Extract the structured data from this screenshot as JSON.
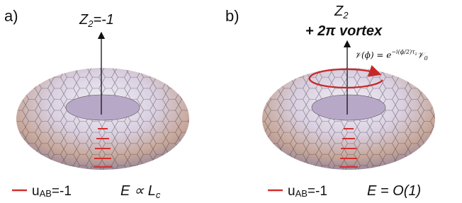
{
  "panels": [
    {
      "label": "a)",
      "axis_label": {
        "symbol": "Z",
        "subscript": "2",
        "rest": "=-1"
      },
      "legend": {
        "symbol": "u",
        "subscript": "AB",
        "rest": "=-1"
      },
      "energy": {
        "text": "E ∝ L",
        "subscript": "c"
      }
    },
    {
      "label": "b)",
      "axis_label": {
        "symbol": "Z",
        "subscript": "2",
        "rest": "+ 2π vortex"
      },
      "formula": {
        "lhs": "𝒱(ϕ) = e",
        "exponent": "−i(ϕ/2)τ",
        "exponent_sub": "z",
        "op": "𝒱",
        "op_sub": "0"
      },
      "legend": {
        "symbol": "u",
        "subscript": "AB",
        "rest": "=-1"
      },
      "energy": {
        "text": "E = O(1)"
      }
    }
  ]
}
